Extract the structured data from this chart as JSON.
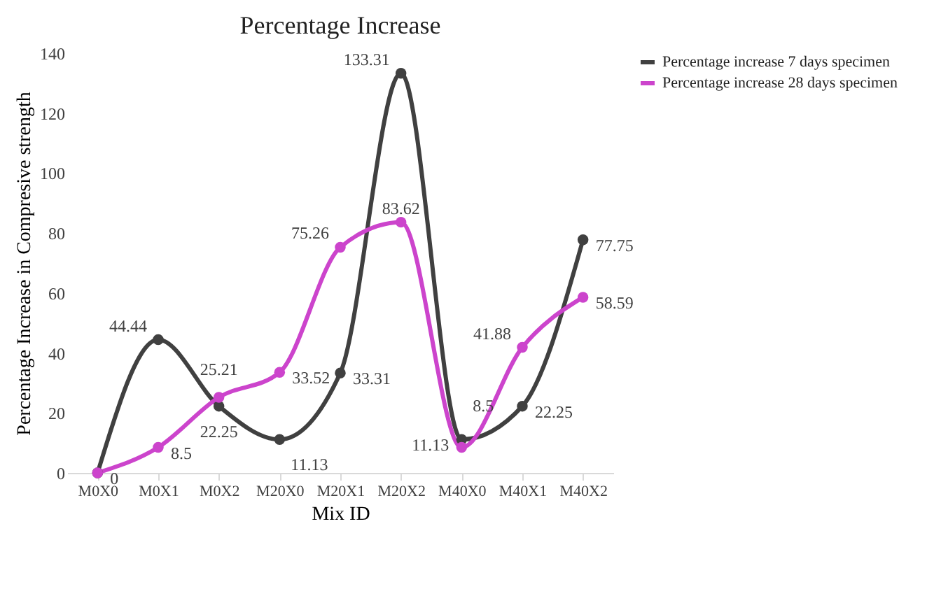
{
  "chart_data": {
    "type": "line",
    "title": "Percentage Increase",
    "xlabel": "Mix ID",
    "ylabel": "Percentage Increase in Compresive strength",
    "categories": [
      "M0X0",
      "M0X1",
      "M0X2",
      "M20X0",
      "M20X1",
      "M20X2",
      "M40X0",
      "M40X1",
      "M40X2"
    ],
    "series": [
      {
        "name": "Percentage increase 7 days specimen",
        "color": "#404040",
        "values": [
          0,
          44.44,
          22.25,
          11.13,
          33.31,
          133.31,
          11.13,
          22.25,
          77.75
        ],
        "value_labels": [
          null,
          "44.44",
          "22.25",
          "11.13",
          "33.31",
          "133.31",
          "11.13",
          "22.25",
          "77.75"
        ]
      },
      {
        "name": "Percentage increase 28 days specimen",
        "color": "#cc44cc",
        "values": [
          0,
          8.5,
          25.21,
          33.52,
          75.26,
          83.62,
          8.5,
          41.88,
          58.59
        ],
        "value_labels": [
          "0",
          "8.5",
          "25.21",
          "33.52",
          "75.26",
          "83.62",
          "8.5",
          "41.88",
          "58.59"
        ]
      }
    ],
    "ylim": [
      0,
      140
    ],
    "yticks": [
      0,
      20,
      40,
      60,
      80,
      100,
      120,
      140
    ],
    "legend": "right",
    "marker": "circle",
    "line_style": "solid"
  }
}
